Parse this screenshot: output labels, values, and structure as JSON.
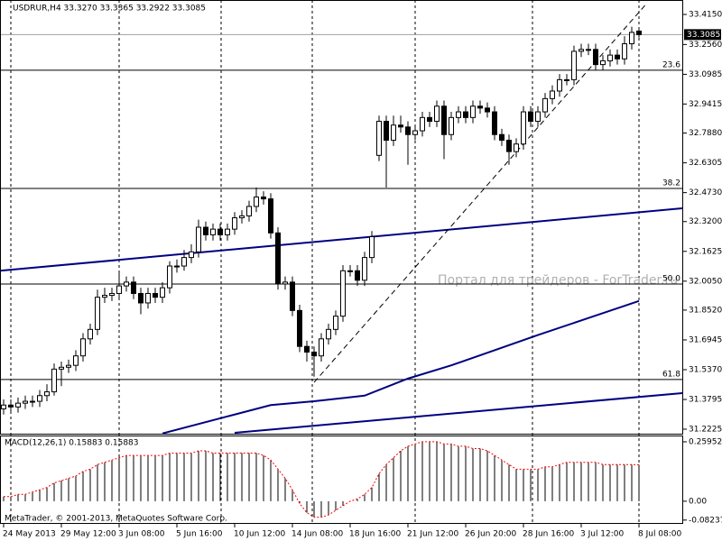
{
  "chart_data": {
    "type": "candlestick",
    "title": "USDRUR,H4 33.3270 33.3365 33.2922 33.3085",
    "categories": [
      "24 May 2013",
      null,
      null,
      null,
      null,
      null,
      null,
      null,
      "29 May 12:00",
      null,
      null,
      null,
      null,
      null,
      null,
      null,
      "3 Jun 08:00",
      null,
      null,
      null,
      null,
      null,
      null,
      null,
      "5 Jun 16:00",
      null,
      null,
      null,
      null,
      null,
      null,
      null,
      "10 Jun 12:00",
      null,
      null,
      null,
      null,
      null,
      null,
      null,
      "14 Jun 08:00",
      null,
      null,
      null,
      null,
      null,
      null,
      null,
      "18 Jun 16:00",
      null,
      null,
      null,
      null,
      null,
      null,
      null,
      "21 Jun 12:00",
      null,
      null,
      null,
      null,
      null,
      null,
      null,
      "26 Jun 20:00",
      null,
      null,
      null,
      null,
      null,
      null,
      null,
      "28 Jun 16:00",
      null,
      null,
      null,
      null,
      null,
      null,
      null,
      "3 Jul 12:00",
      null,
      null,
      null,
      null,
      null,
      null,
      null,
      "8 Jul 08:00"
    ],
    "open": [
      31.33,
      31.35,
      31.34,
      31.36,
      31.37,
      31.37,
      31.4,
      31.42,
      31.54,
      31.55,
      31.56,
      31.61,
      31.7,
      31.75,
      31.92,
      31.93,
      31.94,
      31.98,
      32.0,
      31.94,
      31.89,
      31.94,
      31.92,
      31.97,
      32.085,
      32.085,
      32.13,
      32.16,
      32.29,
      32.25,
      32.28,
      32.25,
      32.28,
      32.34,
      32.35,
      32.4,
      32.45,
      32.44,
      32.26,
      31.99,
      32.0,
      31.85,
      31.66,
      31.63,
      31.61,
      31.7,
      31.75,
      31.82,
      32.06,
      32.06,
      32.01,
      32.13,
      32.67,
      32.85,
      32.75,
      32.83,
      32.82,
      32.78,
      32.8,
      32.87,
      32.85,
      32.93,
      32.78,
      32.87,
      32.9,
      32.87,
      32.93,
      32.92,
      32.9,
      32.78,
      32.75,
      32.69,
      32.73,
      32.9,
      32.85,
      32.9,
      32.97,
      33.01,
      33.07,
      33.07,
      33.22,
      33.23,
      33.23,
      33.15,
      33.17,
      33.2,
      33.18,
      33.26,
      33.327
    ],
    "high": [
      31.38,
      31.38,
      31.39,
      31.4,
      31.4,
      31.43,
      31.46,
      31.57,
      31.58,
      31.59,
      31.64,
      31.73,
      31.78,
      31.96,
      31.97,
      31.97,
      32.05,
      32.03,
      32.03,
      31.97,
      31.97,
      31.97,
      32.0,
      32.11,
      32.12,
      32.17,
      32.2,
      32.33,
      32.32,
      32.31,
      32.31,
      32.31,
      32.37,
      32.38,
      32.43,
      32.5,
      32.48,
      32.47,
      32.29,
      32.03,
      32.03,
      31.88,
      31.69,
      31.66,
      31.73,
      31.78,
      31.85,
      32.09,
      32.09,
      32.09,
      32.16,
      32.27,
      32.88,
      32.88,
      32.88,
      32.88,
      32.85,
      32.83,
      32.9,
      32.9,
      32.96,
      32.96,
      32.9,
      32.93,
      32.93,
      32.96,
      32.96,
      32.95,
      32.93,
      32.81,
      32.78,
      32.76,
      32.93,
      32.93,
      32.93,
      33.0,
      33.04,
      33.1,
      33.1,
      33.25,
      33.26,
      33.26,
      33.26,
      33.2,
      33.23,
      33.23,
      33.3,
      33.35,
      33.3365
    ],
    "low": [
      31.3,
      31.31,
      31.31,
      31.33,
      31.34,
      31.34,
      31.37,
      31.4,
      31.45,
      31.52,
      31.53,
      31.58,
      31.67,
      31.72,
      31.89,
      31.9,
      31.91,
      31.95,
      31.91,
      31.83,
      31.86,
      31.89,
      31.89,
      31.94,
      32.05,
      32.06,
      32.1,
      32.13,
      32.22,
      32.22,
      32.22,
      32.22,
      32.25,
      32.31,
      32.32,
      32.37,
      32.41,
      32.23,
      31.96,
      31.96,
      31.82,
      31.63,
      31.58,
      31.5,
      31.58,
      31.67,
      31.72,
      31.79,
      32.03,
      31.98,
      31.98,
      32.1,
      32.64,
      32.5,
      32.72,
      32.79,
      32.62,
      32.75,
      32.77,
      32.82,
      32.82,
      32.65,
      32.75,
      32.84,
      32.84,
      32.84,
      32.89,
      32.87,
      32.75,
      32.72,
      32.62,
      32.66,
      32.7,
      32.82,
      32.82,
      32.87,
      32.94,
      32.98,
      33.04,
      33.04,
      33.19,
      33.2,
      33.12,
      33.12,
      33.14,
      33.15,
      33.15,
      33.23,
      33.2922
    ],
    "close": [
      31.35,
      31.34,
      31.36,
      31.37,
      31.37,
      31.4,
      31.42,
      31.54,
      31.55,
      31.56,
      31.61,
      31.7,
      31.75,
      31.92,
      31.93,
      31.94,
      31.98,
      32.0,
      31.94,
      31.89,
      31.94,
      31.92,
      31.97,
      32.085,
      32.085,
      32.13,
      32.16,
      32.29,
      32.25,
      32.28,
      32.25,
      32.28,
      32.34,
      32.35,
      32.4,
      32.45,
      32.44,
      32.26,
      31.99,
      32.0,
      31.85,
      31.66,
      31.63,
      31.61,
      31.7,
      31.75,
      31.82,
      32.06,
      32.06,
      32.01,
      32.13,
      32.24,
      32.85,
      32.75,
      32.83,
      32.82,
      32.78,
      32.8,
      32.87,
      32.85,
      32.93,
      32.78,
      32.87,
      32.9,
      32.87,
      32.93,
      32.92,
      32.9,
      32.78,
      32.75,
      32.69,
      32.73,
      32.9,
      32.85,
      32.9,
      32.97,
      33.01,
      33.07,
      33.07,
      33.22,
      33.23,
      33.23,
      33.15,
      33.17,
      33.2,
      33.18,
      33.26,
      33.32,
      33.3085
    ],
    "up_color": "#ffffff",
    "down_color": "#000000",
    "ylim": [
      31.2034,
      33.4913
    ],
    "yticks": [
      {
        "value": 33.415,
        "label": "33.4150"
      },
      {
        "value": 33.256,
        "label": "33.2560"
      },
      {
        "value": 33.0985,
        "label": "33.0985"
      },
      {
        "value": 32.9415,
        "label": "32.9415"
      },
      {
        "value": 32.788,
        "label": "32.7880"
      },
      {
        "value": 32.6305,
        "label": "32.6305"
      },
      {
        "value": 32.473,
        "label": "32.4730"
      },
      {
        "value": 32.32,
        "label": "32.3200"
      },
      {
        "value": 32.1625,
        "label": "32.1625"
      },
      {
        "value": 32.005,
        "label": "32.0050"
      },
      {
        "value": 31.852,
        "label": "31.8520"
      },
      {
        "value": 31.6945,
        "label": "31.6945"
      },
      {
        "value": 31.537,
        "label": "31.5370"
      },
      {
        "value": 31.3795,
        "label": "31.3795"
      },
      {
        "value": 31.2225,
        "label": "31.2225"
      }
    ],
    "current_price": {
      "value": 33.3085,
      "label": "33.3085"
    },
    "fibo_levels": [
      {
        "value": 33.12,
        "label": "23.6"
      },
      {
        "value": 32.495,
        "label": "38.2"
      },
      {
        "value": 31.99,
        "label": "50.0"
      },
      {
        "value": 31.485,
        "label": "61.8"
      }
    ],
    "trendlines": [
      {
        "x": [
          -0.5,
          94
        ],
        "values": [
          32.06,
          32.39
        ],
        "color": "#000080",
        "dashed": false
      },
      {
        "x": [
          32,
          94
        ],
        "values": [
          31.2034,
          31.4134
        ],
        "color": "#000080",
        "dashed": false
      },
      {
        "x": [
          43,
          89
        ],
        "values": [
          31.47,
          33.47
        ],
        "color": "#000000",
        "dashed": true
      }
    ],
    "moving_average": {
      "x": [
        22,
        31,
        37,
        43,
        50,
        56,
        62,
        68,
        74,
        81,
        88
      ],
      "values": [
        31.2,
        31.29,
        31.35,
        31.37,
        31.4,
        31.49,
        31.56,
        31.64,
        31.72,
        31.81,
        31.9
      ],
      "color": "#000080"
    },
    "watermark": "Портал для трейдеров - ForTrader.ru",
    "macd": {
      "label": "MACD(12,26,1) 0.15883 0.15883",
      "values": [
        0.02,
        0.02,
        0.03,
        0.03,
        0.04,
        0.05,
        0.06,
        0.08,
        0.09,
        0.1,
        0.11,
        0.13,
        0.14,
        0.16,
        0.17,
        0.18,
        0.19,
        0.2,
        0.2,
        0.2,
        0.2,
        0.2,
        0.2,
        0.21,
        0.21,
        0.21,
        0.21,
        0.22,
        0.22,
        0.21,
        0.21,
        0.21,
        0.21,
        0.21,
        0.21,
        0.21,
        0.2,
        0.18,
        0.14,
        0.1,
        0.05,
        -0.01,
        -0.05,
        -0.07,
        -0.07,
        -0.06,
        -0.04,
        -0.02,
        0.0,
        0.01,
        0.03,
        0.06,
        0.12,
        0.16,
        0.19,
        0.22,
        0.24,
        0.25,
        0.26,
        0.26,
        0.26,
        0.25,
        0.25,
        0.24,
        0.24,
        0.23,
        0.23,
        0.22,
        0.2,
        0.18,
        0.16,
        0.14,
        0.14,
        0.14,
        0.14,
        0.15,
        0.15,
        0.16,
        0.17,
        0.17,
        0.17,
        0.17,
        0.17,
        0.16,
        0.16,
        0.16,
        0.16,
        0.16,
        0.15883
      ],
      "signal_color": "#ff0000",
      "ylim": [
        -0.095,
        0.287
      ],
      "yticks": [
        0.25952,
        {
          "value": 0,
          "label": "0.00"
        },
        -0.08237
      ]
    },
    "footer": "MetaTrader, © 2001-2013, MetaQuotes Software Corp."
  }
}
